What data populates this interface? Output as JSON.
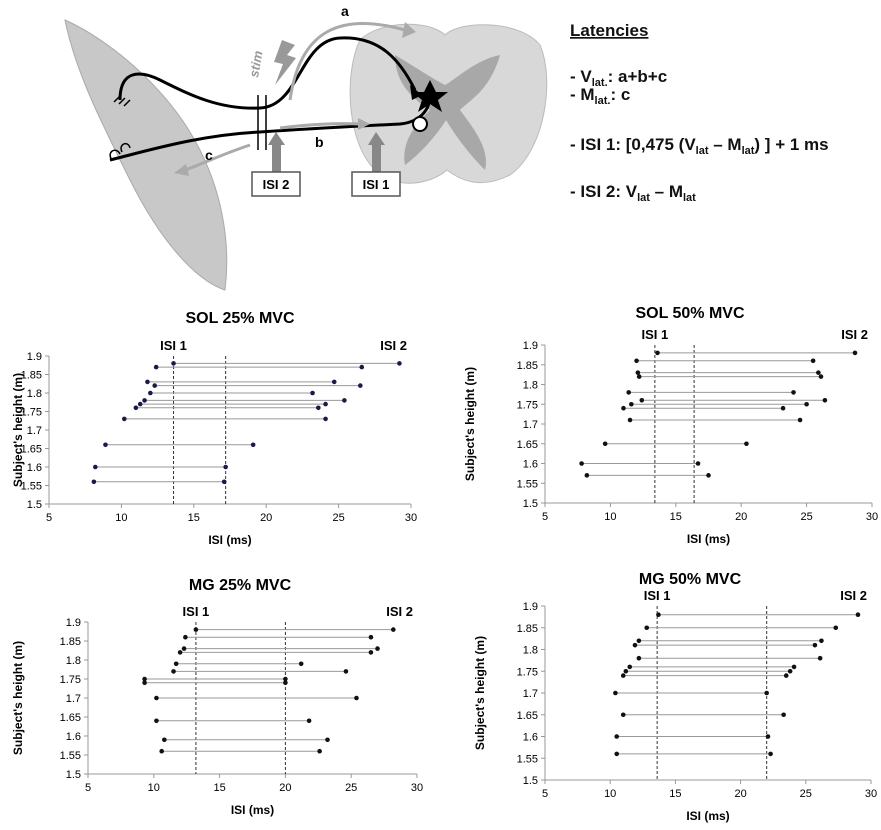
{
  "diagram": {
    "path_labels": [
      "a",
      "b",
      "c"
    ],
    "stim": "stim",
    "boxes": [
      "ISI 2",
      "ISI 1"
    ],
    "latencies": {
      "title": "Latencies",
      "lines": [
        [
          "- V",
          "lat.",
          ": a+b+c"
        ],
        [
          "- M",
          "lat.",
          ": c"
        ],
        [
          "- ISI 1: [0,475 (V",
          "lat",
          " – M",
          "lat",
          ") ] + 1 ms"
        ],
        [
          "- ISI 2: V",
          "lat",
          " – M",
          "lat"
        ]
      ]
    }
  },
  "chart_data": [
    {
      "type": "dumbbell",
      "title": "SOL 25% MVC",
      "xlabel": "ISI (ms)",
      "ylabel": "Subject's height (m)",
      "y": [
        1.88,
        1.87,
        1.83,
        1.82,
        1.8,
        1.78,
        1.77,
        1.76,
        1.73,
        1.66,
        1.6,
        1.56
      ],
      "series": [
        {
          "name": "ISI 1",
          "color": "#1a1a4a",
          "values": [
            13.6,
            12.4,
            11.8,
            12.3,
            12.0,
            11.6,
            11.3,
            11.0,
            10.2,
            8.9,
            8.2,
            8.1
          ]
        },
        {
          "name": "ISI 2",
          "color": "#1a1a4a",
          "values": [
            29.2,
            26.6,
            24.7,
            26.5,
            23.2,
            25.4,
            24.1,
            23.6,
            24.1,
            19.1,
            17.2,
            17.1
          ]
        }
      ],
      "ref_lines": [
        13.6,
        17.2
      ],
      "xlim": [
        5,
        30
      ],
      "xticks": [
        5,
        10,
        15,
        20,
        25,
        30
      ],
      "ylim": [
        1.5,
        1.9
      ],
      "yticks": [
        1.5,
        1.55,
        1.6,
        1.65,
        1.7,
        1.75,
        1.8,
        1.85,
        1.9
      ]
    },
    {
      "type": "dumbbell",
      "title": "SOL 50% MVC",
      "xlabel": "ISI (ms)",
      "ylabel": "Subject's height (m)",
      "y": [
        1.88,
        1.86,
        1.83,
        1.82,
        1.78,
        1.76,
        1.75,
        1.74,
        1.71,
        1.65,
        1.6,
        1.57
      ],
      "series": [
        {
          "name": "ISI 1",
          "color": "#111111",
          "values": [
            13.6,
            12.0,
            12.1,
            12.2,
            11.4,
            12.4,
            11.6,
            11.0,
            11.5,
            9.6,
            7.8,
            8.2
          ]
        },
        {
          "name": "ISI 2",
          "color": "#111111",
          "values": [
            28.7,
            25.5,
            25.9,
            26.1,
            24.0,
            26.4,
            25.0,
            23.2,
            24.5,
            20.4,
            16.7,
            17.5
          ]
        }
      ],
      "ref_lines": [
        13.4,
        16.4
      ],
      "xlim": [
        5,
        30
      ],
      "xticks": [
        5,
        10,
        15,
        20,
        25,
        30
      ],
      "ylim": [
        1.5,
        1.9
      ],
      "yticks": [
        1.5,
        1.55,
        1.6,
        1.65,
        1.7,
        1.75,
        1.8,
        1.85,
        1.9
      ]
    },
    {
      "type": "dumbbell",
      "title": "MG 25% MVC",
      "xlabel": "ISI (ms)",
      "ylabel": "Subject's height (m)",
      "y": [
        1.88,
        1.86,
        1.83,
        1.82,
        1.79,
        1.77,
        1.75,
        1.74,
        1.7,
        1.64,
        1.59,
        1.56
      ],
      "series": [
        {
          "name": "ISI 1",
          "color": "#111111",
          "values": [
            13.2,
            12.4,
            12.3,
            12.0,
            11.7,
            11.5,
            9.3,
            9.3,
            10.2,
            10.2,
            10.8,
            10.6
          ]
        },
        {
          "name": "ISI 2",
          "color": "#111111",
          "values": [
            28.2,
            26.5,
            27.0,
            26.5,
            21.2,
            24.6,
            20.0,
            20.0,
            25.4,
            21.8,
            23.2,
            22.6
          ]
        }
      ],
      "ref_lines": [
        13.2,
        20.0
      ],
      "xlim": [
        5,
        30
      ],
      "xticks": [
        5,
        10,
        15,
        20,
        25,
        30
      ],
      "ylim": [
        1.5,
        1.9
      ],
      "yticks": [
        1.5,
        1.55,
        1.6,
        1.65,
        1.7,
        1.75,
        1.8,
        1.85,
        1.9
      ]
    },
    {
      "type": "dumbbell",
      "title": "MG 50% MVC",
      "xlabel": "ISI (ms)",
      "ylabel": "Subject's height (m)",
      "y": [
        1.88,
        1.85,
        1.82,
        1.81,
        1.78,
        1.76,
        1.75,
        1.74,
        1.7,
        1.65,
        1.6,
        1.56
      ],
      "series": [
        {
          "name": "ISI 1",
          "color": "#111111",
          "values": [
            13.7,
            12.8,
            12.2,
            11.9,
            12.2,
            11.5,
            11.2,
            11.0,
            10.4,
            11.0,
            10.5,
            10.5
          ]
        },
        {
          "name": "ISI 2",
          "color": "#111111",
          "values": [
            29.0,
            27.3,
            26.2,
            25.7,
            26.1,
            24.1,
            23.8,
            23.5,
            22.0,
            23.3,
            22.1,
            22.3
          ]
        }
      ],
      "ref_lines": [
        13.6,
        22.0
      ],
      "xlim": [
        5,
        30
      ],
      "xticks": [
        5,
        10,
        15,
        20,
        25,
        30
      ],
      "ylim": [
        1.5,
        1.9
      ],
      "yticks": [
        1.5,
        1.55,
        1.6,
        1.65,
        1.7,
        1.75,
        1.8,
        1.85,
        1.9
      ]
    }
  ]
}
